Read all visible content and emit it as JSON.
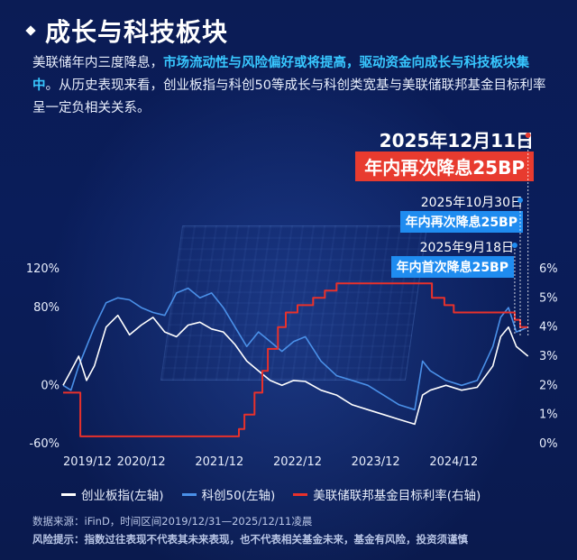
{
  "header": {
    "title": "成长与科技板块"
  },
  "description": {
    "part1": "美联储年内三度降息，",
    "highlight": "市场流动性与风险偏好或将提高，驱动资金向成长与科技板块集中",
    "part2": "。从历史表现来看，创业板指与科创50等成长与科创类宽基与美联储联邦基金目标利率呈一定负相关关系。"
  },
  "annotations": {
    "a1_date": "2025年12月11日",
    "a1_text": "年内再次降息25BP",
    "a2_date": "2025年10月30日",
    "a2_text": "年内再次降息25BP",
    "a3_date": "2025年9月18日",
    "a3_text": "年内首次降息25BP"
  },
  "legend": {
    "s1": "创业板指(左轴)",
    "s2": "科创50(左轴)",
    "s3": "美联储联邦基金目标利率(右轴)"
  },
  "footer": {
    "source": "数据来源：iFinD，时间区间2019/12/31—2025/12/11凌晨",
    "risk_label": "风险提示：",
    "risk_text": "指数过往表现不代表其未来表现，也不代表相关基金未来，基金有风险，投资须谨慎"
  },
  "colors": {
    "white_series": "#ffffff",
    "blue_series": "#4a90e8",
    "red_series": "#e8312b",
    "badge_red": "#e83b2f",
    "badge_blue": "#1f8cf0"
  },
  "chart_data": {
    "type": "line",
    "x_tick_labels": [
      "2019/12",
      "2020/12",
      "2021/12",
      "2022/12",
      "2023/12",
      "2024/12"
    ],
    "left_axis": {
      "ticks": [
        "120%",
        "80%",
        "0%",
        "-60%"
      ],
      "tick_values": [
        120,
        80,
        0,
        -60
      ],
      "range": [
        -60,
        120
      ]
    },
    "right_axis": {
      "ticks": [
        "6%",
        "5%",
        "4%",
        "3%",
        "2%",
        "1%",
        "0%"
      ],
      "range": [
        0,
        6
      ]
    },
    "series": [
      {
        "name": "创业板指(左轴)",
        "axis": "left",
        "x": [
          0,
          0.1,
          0.2,
          0.3,
          0.4,
          0.55,
          0.7,
          0.85,
          1.0,
          1.15,
          1.3,
          1.45,
          1.6,
          1.75,
          1.9,
          2.05,
          2.2,
          2.35,
          2.5,
          2.65,
          2.8,
          2.95,
          3.1,
          3.3,
          3.5,
          3.7,
          3.9,
          4.1,
          4.3,
          4.5,
          4.6,
          4.7,
          4.9,
          5.1,
          5.3,
          5.5,
          5.6,
          5.7,
          5.8,
          5.95
        ],
        "y": [
          0,
          15,
          30,
          5,
          20,
          60,
          72,
          52,
          62,
          70,
          55,
          50,
          62,
          65,
          58,
          55,
          42,
          25,
          15,
          5,
          0,
          5,
          4,
          -5,
          -10,
          -20,
          -25,
          -30,
          -35,
          -40,
          -10,
          -5,
          0,
          -5,
          -2,
          20,
          50,
          60,
          40,
          30
        ]
      },
      {
        "name": "科创50(左轴)",
        "axis": "left",
        "x": [
          0,
          0.1,
          0.2,
          0.3,
          0.4,
          0.55,
          0.7,
          0.85,
          1.0,
          1.15,
          1.3,
          1.45,
          1.6,
          1.75,
          1.9,
          2.05,
          2.2,
          2.35,
          2.5,
          2.65,
          2.8,
          2.95,
          3.1,
          3.3,
          3.5,
          3.7,
          3.9,
          4.1,
          4.3,
          4.5,
          4.6,
          4.7,
          4.9,
          5.1,
          5.3,
          5.5,
          5.6,
          5.7,
          5.8,
          5.95
        ],
        "y": [
          0,
          -5,
          20,
          40,
          60,
          85,
          90,
          88,
          80,
          75,
          72,
          95,
          100,
          90,
          95,
          80,
          60,
          40,
          55,
          45,
          35,
          45,
          50,
          25,
          10,
          5,
          0,
          -10,
          -20,
          -25,
          25,
          15,
          5,
          0,
          5,
          40,
          70,
          80,
          55,
          60
        ]
      },
      {
        "name": "美联储联邦基金目标利率(右轴)",
        "axis": "right",
        "x": [
          0,
          0.22,
          0.22,
          2.25,
          2.25,
          2.32,
          2.32,
          2.45,
          2.45,
          2.55,
          2.55,
          2.62,
          2.62,
          2.75,
          2.75,
          2.85,
          2.85,
          3.0,
          3.0,
          3.2,
          3.2,
          3.35,
          3.35,
          3.5,
          3.5,
          4.72,
          4.72,
          4.88,
          4.88,
          5.0,
          5.0,
          5.78,
          5.78,
          5.85,
          5.85,
          5.95
        ],
        "y": [
          1.75,
          1.75,
          0.25,
          0.25,
          0.5,
          0.5,
          1.0,
          1.0,
          1.75,
          1.75,
          2.5,
          2.5,
          3.25,
          3.25,
          4.0,
          4.0,
          4.5,
          4.5,
          4.75,
          4.75,
          5.0,
          5.0,
          5.25,
          5.25,
          5.5,
          5.5,
          5.0,
          5.0,
          4.75,
          4.75,
          4.5,
          4.5,
          4.25,
          4.25,
          4.0,
          4.0
        ]
      }
    ],
    "x_range": [
      0,
      6
    ],
    "grid": false
  }
}
